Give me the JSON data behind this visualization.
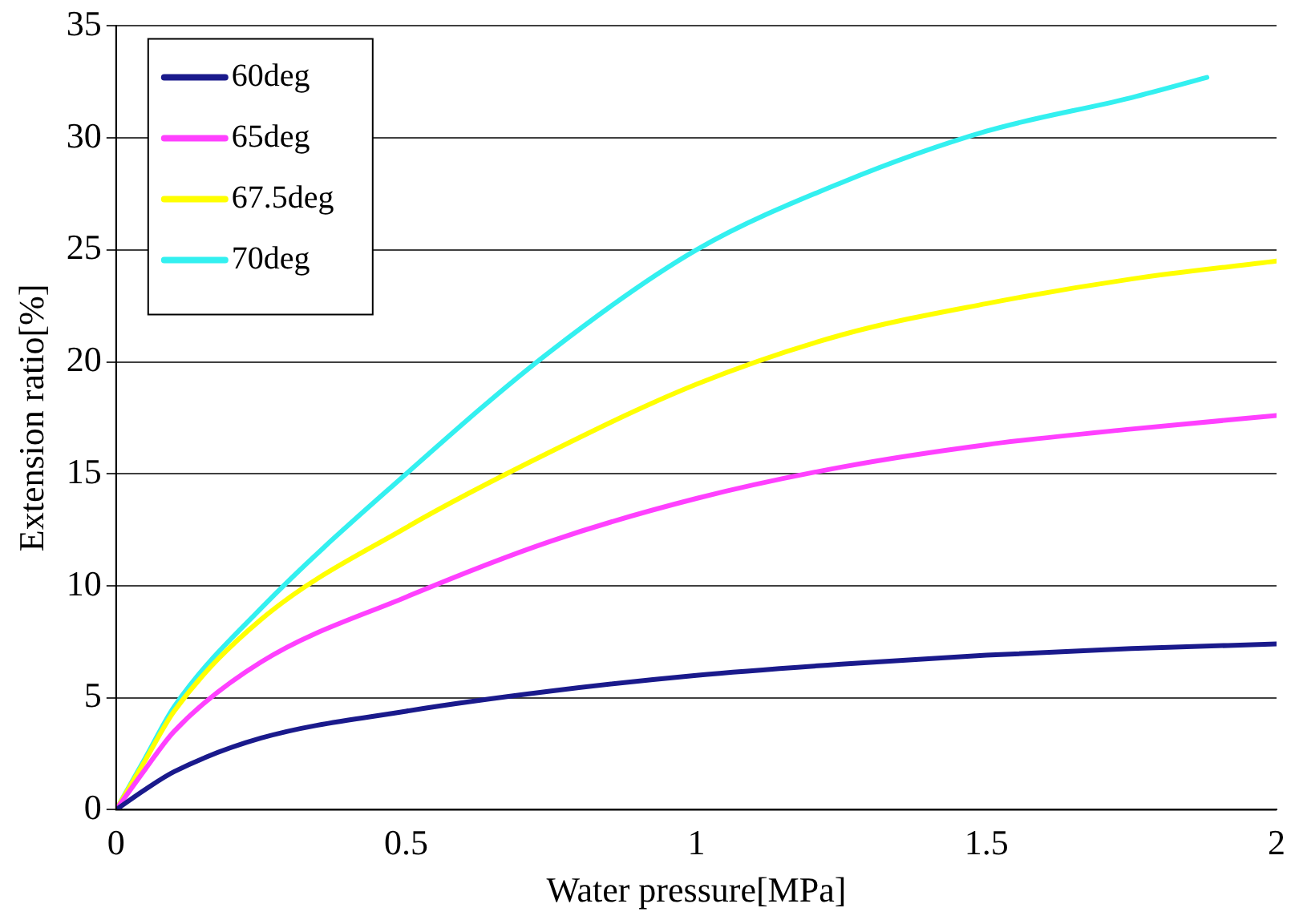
{
  "chart_data": {
    "type": "line",
    "xlabel": "Water pressure[MPa]",
    "ylabel": "Extension ratio[%]",
    "xlim": [
      0,
      2
    ],
    "xticks": [
      0,
      0.5,
      1,
      1.5,
      2
    ],
    "ylim": [
      0,
      35
    ],
    "yticks": [
      0,
      5,
      10,
      15,
      20,
      25,
      30,
      35
    ],
    "grid": "y",
    "legend": "top left",
    "marker": "none",
    "line_style": "solid",
    "series": [
      {
        "name": "60deg",
        "color": "#1a1a8c",
        "x": [
          0,
          0.05,
          0.1,
          0.25,
          0.5,
          0.75,
          1,
          1.25,
          1.5,
          1.75,
          2
        ],
        "values": [
          0,
          0.9,
          1.7,
          3.2,
          4.4,
          5.3,
          6.0,
          6.5,
          6.9,
          7.2,
          7.4
        ]
      },
      {
        "name": "65deg",
        "color": "#ff40ff",
        "x": [
          0,
          0.05,
          0.1,
          0.25,
          0.5,
          0.75,
          1,
          1.25,
          1.5,
          1.75,
          2
        ],
        "values": [
          0,
          1.8,
          3.5,
          6.6,
          9.5,
          12,
          13.9,
          15.3,
          16.3,
          17,
          17.6
        ]
      },
      {
        "name": "67.5deg",
        "color": "#ffff00",
        "x": [
          0,
          0.05,
          0.1,
          0.25,
          0.5,
          0.75,
          1,
          1.25,
          1.5,
          1.75,
          2
        ],
        "values": [
          0,
          2.2,
          4.4,
          8.5,
          12.6,
          16,
          19,
          21.2,
          22.6,
          23.7,
          24.5
        ]
      },
      {
        "name": "70deg",
        "color": "#33f0f0",
        "x": [
          0,
          0.05,
          0.1,
          0.25,
          0.5,
          0.75,
          1,
          1.25,
          1.5,
          1.75,
          1.88
        ],
        "values": [
          0,
          2.3,
          4.6,
          9,
          15,
          20.5,
          25,
          28,
          30.3,
          31.8,
          32.7
        ]
      }
    ]
  }
}
